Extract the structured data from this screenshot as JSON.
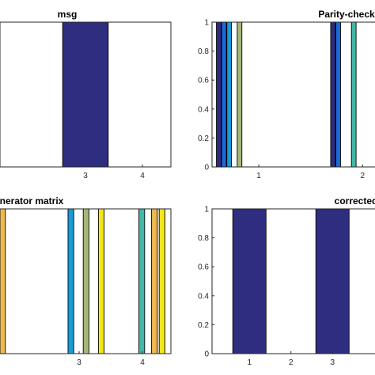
{
  "chart_data": [
    {
      "id": "msg",
      "type": "bar",
      "title": "msg",
      "xlabel": "",
      "ylabel": "",
      "xlim": [
        1.5,
        4.5
      ],
      "ylim": [
        0,
        1
      ],
      "xticks": [
        3,
        4
      ],
      "yticks": [],
      "bars": [
        {
          "x": 3,
          "width": 0.8,
          "value": 1,
          "color": "#2e2d7f"
        }
      ]
    },
    {
      "id": "parity",
      "type": "bar",
      "title": "Parity-check",
      "xlabel": "",
      "ylabel": "",
      "xlim": [
        0.55,
        2.15
      ],
      "ylim": [
        0,
        1
      ],
      "xticks": [
        1,
        2
      ],
      "yticks": [
        0,
        0.2,
        0.4,
        0.6,
        0.8,
        1
      ],
      "bars": [
        {
          "x": 0.615,
          "width": 0.045,
          "value": 1,
          "color": "#2e2d7f"
        },
        {
          "x": 0.665,
          "width": 0.045,
          "value": 1,
          "color": "#1b6ad8"
        },
        {
          "x": 0.715,
          "width": 0.045,
          "value": 1,
          "color": "#1a9ad6"
        },
        {
          "x": 0.815,
          "width": 0.045,
          "value": 1,
          "color": "#a5b878"
        },
        {
          "x": 1.715,
          "width": 0.045,
          "value": 1,
          "color": "#2e2d7f"
        },
        {
          "x": 1.765,
          "width": 0.045,
          "value": 1,
          "color": "#1b6ad8"
        },
        {
          "x": 1.915,
          "width": 0.045,
          "value": 1,
          "color": "#41b8a8"
        }
      ]
    },
    {
      "id": "generator",
      "type": "bar",
      "title": "nerator matrix",
      "xlabel": "",
      "ylabel": "",
      "xlim": [
        1.75,
        4.45
      ],
      "ylim": [
        0,
        1
      ],
      "xticks": [
        3,
        4
      ],
      "yticks": [],
      "bars": [
        {
          "x": 1.79,
          "width": 0.09,
          "value": 1,
          "color": "#efb950"
        },
        {
          "x": 2.87,
          "width": 0.09,
          "value": 1,
          "color": "#1a9ad6"
        },
        {
          "x": 3.11,
          "width": 0.09,
          "value": 1,
          "color": "#a5b878"
        },
        {
          "x": 3.35,
          "width": 0.09,
          "value": 1,
          "color": "#f1e61a"
        },
        {
          "x": 3.99,
          "width": 0.09,
          "value": 1,
          "color": "#41b8a8"
        },
        {
          "x": 4.19,
          "width": 0.09,
          "value": 1,
          "color": "#efb950"
        },
        {
          "x": 4.31,
          "width": 0.09,
          "value": 1,
          "color": "#f1e61a"
        }
      ]
    },
    {
      "id": "corrected",
      "type": "bar",
      "title": "corrected",
      "xlabel": "",
      "ylabel": "",
      "xlim": [
        0.1,
        4.1
      ],
      "ylim": [
        0,
        1
      ],
      "xticks": [
        1,
        2,
        3
      ],
      "yticks": [
        0,
        0.2,
        0.4,
        0.6,
        0.8,
        1
      ],
      "bars": [
        {
          "x": 1,
          "width": 0.8,
          "value": 1,
          "color": "#2e2d7f"
        },
        {
          "x": 3,
          "width": 0.8,
          "value": 1,
          "color": "#2e2d7f"
        }
      ]
    }
  ]
}
